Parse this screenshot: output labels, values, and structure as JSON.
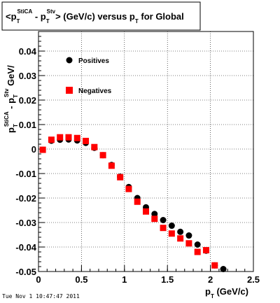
{
  "chart_data": {
    "type": "scatter",
    "title": "<p_T^StiCA - p_T^Stv> (GeV/c) versus p_T for Global",
    "xlabel": "p_T (GeV/c)",
    "ylabel": "p_T^StiCA - p_T^Stv GeV/",
    "xlim": [
      0,
      2.5
    ],
    "ylim": [
      -0.05,
      0.048
    ],
    "xticks": [
      {
        "value": 0,
        "label": "0"
      },
      {
        "value": 0.5,
        "label": "0.5"
      },
      {
        "value": 1,
        "label": "1"
      },
      {
        "value": 1.5,
        "label": "1.5"
      },
      {
        "value": 2,
        "label": "2"
      },
      {
        "value": 2.5,
        "label": "2.5"
      }
    ],
    "yticks": [
      {
        "value": 0.04,
        "label": "0.04"
      },
      {
        "value": 0.03,
        "label": "0.03"
      },
      {
        "value": 0.02,
        "label": "0.02"
      },
      {
        "value": 0.01,
        "label": "0.01"
      },
      {
        "value": 0,
        "label": "0"
      },
      {
        "value": -0.01,
        "label": "-0.01"
      },
      {
        "value": -0.02,
        "label": "-0.02"
      },
      {
        "value": -0.03,
        "label": "-0.03"
      },
      {
        "value": -0.04,
        "label": "-0.04"
      },
      {
        "value": -0.05,
        "label": "-0.05"
      }
    ],
    "grid": true,
    "legend_position": "top-left",
    "series": [
      {
        "name": "Positives",
        "marker": "circle",
        "color": "#000000",
        "points": [
          [
            0.05,
            -0.0003
          ],
          [
            0.15,
            0.0034
          ],
          [
            0.25,
            0.0038
          ],
          [
            0.35,
            0.0039
          ],
          [
            0.45,
            0.0035
          ],
          [
            0.55,
            0.0025
          ],
          [
            0.65,
            0.0005
          ],
          [
            0.75,
            -0.0025
          ],
          [
            0.85,
            -0.0065
          ],
          [
            0.95,
            -0.0113
          ],
          [
            1.05,
            -0.0155
          ],
          [
            1.15,
            -0.02
          ],
          [
            1.25,
            -0.0238
          ],
          [
            1.35,
            -0.0265
          ],
          [
            1.45,
            -0.029
          ],
          [
            1.55,
            -0.0313
          ],
          [
            1.65,
            -0.0338
          ],
          [
            1.75,
            -0.0353
          ],
          [
            1.85,
            -0.039
          ],
          [
            1.95,
            -0.0415
          ],
          [
            2.05,
            -0.0475
          ],
          [
            2.15,
            -0.049
          ]
        ]
      },
      {
        "name": "Negatives",
        "marker": "square",
        "color": "#ff0000",
        "points": [
          [
            0.05,
            -0.0003
          ],
          [
            0.15,
            0.0038
          ],
          [
            0.25,
            0.0048
          ],
          [
            0.35,
            0.0048
          ],
          [
            0.45,
            0.0045
          ],
          [
            0.55,
            0.0033
          ],
          [
            0.65,
            0.0008
          ],
          [
            0.75,
            -0.0025
          ],
          [
            0.85,
            -0.0068
          ],
          [
            0.95,
            -0.0115
          ],
          [
            1.05,
            -0.0163
          ],
          [
            1.15,
            -0.0215
          ],
          [
            1.25,
            -0.0255
          ],
          [
            1.35,
            -0.0285
          ],
          [
            1.45,
            -0.0322
          ],
          [
            1.55,
            -0.0345
          ],
          [
            1.65,
            -0.0365
          ],
          [
            1.75,
            -0.0385
          ],
          [
            1.85,
            -0.042
          ],
          [
            1.95,
            -0.0413
          ],
          [
            2.05,
            -0.0475
          ]
        ]
      }
    ]
  },
  "footer": {
    "timestamp": "Tue Nov  1 10:47:47 2011"
  }
}
